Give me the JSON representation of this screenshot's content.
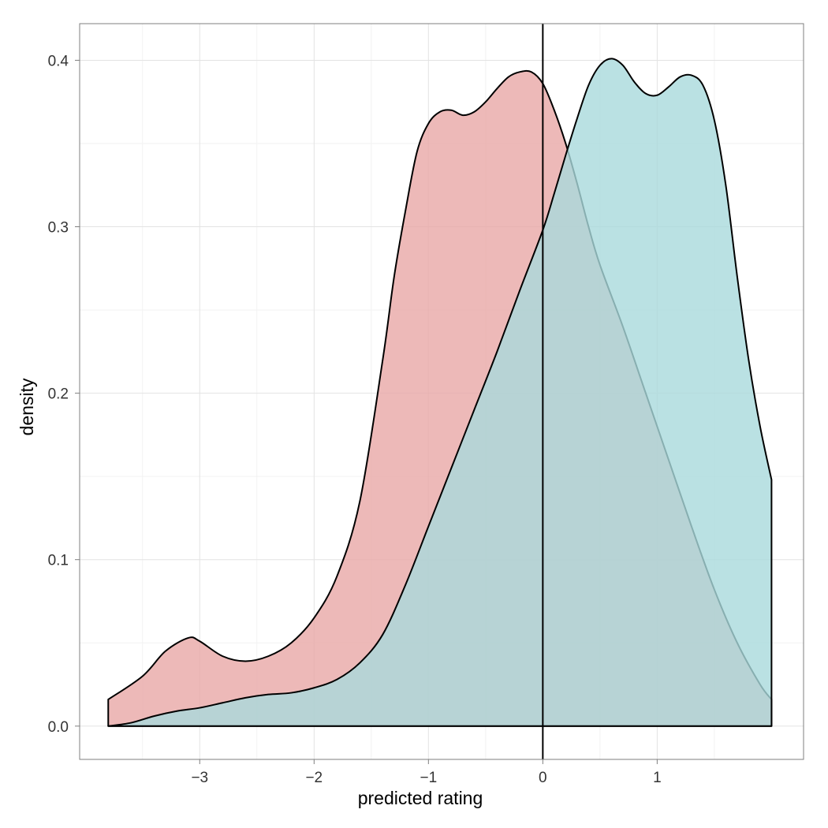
{
  "chart_data": {
    "type": "area",
    "title": "",
    "xlabel": "predicted rating",
    "ylabel": "density",
    "xlim": [
      -4.05,
      2.28
    ],
    "ylim": [
      -0.02,
      0.422
    ],
    "x_ticks": [
      -3,
      -2,
      -1,
      0,
      1
    ],
    "x_tick_labels": [
      "−3",
      "−2",
      "−1",
      "0",
      "1"
    ],
    "y_ticks": [
      0.0,
      0.1,
      0.2,
      0.3,
      0.4
    ],
    "y_tick_labels": [
      "0.0",
      "0.1",
      "0.2",
      "0.3",
      "0.4"
    ],
    "grid": true,
    "legend": "none",
    "vline_x": 0,
    "series": [
      {
        "color": "#e8a8a6",
        "x": [
          -3.8,
          -3.5,
          -3.3,
          -3.1,
          -3.0,
          -2.8,
          -2.6,
          -2.4,
          -2.2,
          -2.0,
          -1.8,
          -1.6,
          -1.4,
          -1.3,
          -1.2,
          -1.1,
          -1.0,
          -0.9,
          -0.8,
          -0.7,
          -0.6,
          -0.5,
          -0.4,
          -0.3,
          -0.2,
          -0.1,
          0.0,
          0.1,
          0.2,
          0.3,
          0.4,
          0.5,
          0.7,
          0.9,
          1.1,
          1.3,
          1.5,
          1.7,
          1.9,
          2.0
        ],
        "y": [
          0.016,
          0.03,
          0.045,
          0.053,
          0.051,
          0.042,
          0.039,
          0.042,
          0.05,
          0.065,
          0.09,
          0.135,
          0.22,
          0.27,
          0.31,
          0.345,
          0.362,
          0.369,
          0.37,
          0.367,
          0.369,
          0.375,
          0.383,
          0.39,
          0.393,
          0.393,
          0.386,
          0.37,
          0.35,
          0.326,
          0.3,
          0.277,
          0.24,
          0.2,
          0.16,
          0.12,
          0.082,
          0.05,
          0.025,
          0.016
        ]
      },
      {
        "color": "#a9d9dc",
        "x": [
          -3.8,
          -3.6,
          -3.4,
          -3.2,
          -3.0,
          -2.8,
          -2.6,
          -2.4,
          -2.2,
          -2.0,
          -1.8,
          -1.6,
          -1.4,
          -1.2,
          -1.0,
          -0.8,
          -0.6,
          -0.4,
          -0.2,
          0.0,
          0.1,
          0.2,
          0.3,
          0.4,
          0.5,
          0.6,
          0.7,
          0.8,
          0.9,
          1.0,
          1.1,
          1.2,
          1.3,
          1.4,
          1.5,
          1.6,
          1.7,
          1.8,
          1.9,
          2.0
        ],
        "y": [
          0.0,
          0.002,
          0.006,
          0.009,
          0.011,
          0.014,
          0.017,
          0.019,
          0.02,
          0.023,
          0.028,
          0.038,
          0.055,
          0.085,
          0.12,
          0.155,
          0.19,
          0.225,
          0.262,
          0.298,
          0.32,
          0.343,
          0.365,
          0.385,
          0.397,
          0.401,
          0.397,
          0.387,
          0.38,
          0.379,
          0.384,
          0.39,
          0.391,
          0.385,
          0.364,
          0.325,
          0.27,
          0.22,
          0.18,
          0.148
        ]
      }
    ]
  }
}
